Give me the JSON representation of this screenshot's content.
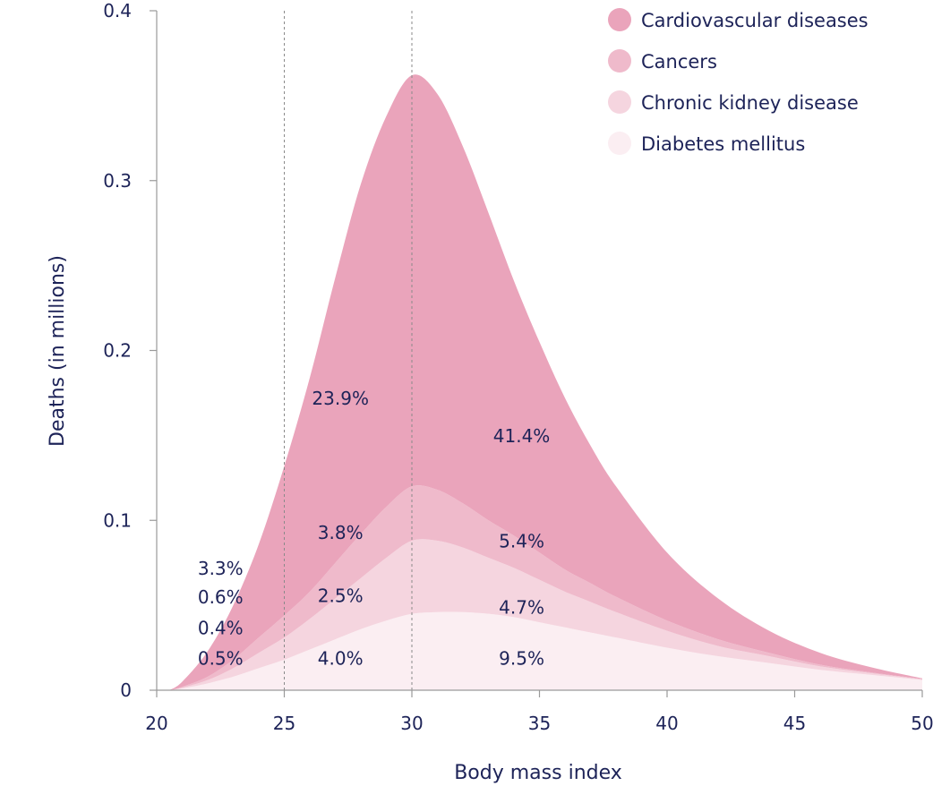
{
  "chart_data": {
    "type": "area",
    "stacked": true,
    "xlabel": "Body mass index",
    "ylabel": "Deaths (in millions)",
    "xlim": [
      20,
      50
    ],
    "ylim": [
      0,
      0.4
    ],
    "xticks": [
      20,
      25,
      30,
      35,
      40,
      45,
      50
    ],
    "yticks": [
      0,
      0.1,
      0.2,
      0.3,
      0.4
    ],
    "ytick_labels": [
      "0",
      "0.1",
      "0.2",
      "0.3",
      "0.4"
    ],
    "reference_lines_x": [
      25,
      30
    ],
    "legend_position": "top-right",
    "x": [
      20.5,
      21,
      22,
      23,
      24,
      25,
      26,
      27,
      28,
      29,
      30,
      31,
      32,
      33,
      34,
      35,
      36,
      37,
      38,
      40,
      42,
      44,
      46,
      48,
      50
    ],
    "series": [
      {
        "name": "Diabetes mellitus",
        "color": "#fbeef2",
        "values": [
          0,
          0.001,
          0.004,
          0.008,
          0.013,
          0.018,
          0.024,
          0.03,
          0.036,
          0.041,
          0.045,
          0.046,
          0.046,
          0.045,
          0.043,
          0.04,
          0.037,
          0.034,
          0.031,
          0.025,
          0.02,
          0.016,
          0.012,
          0.009,
          0.006
        ]
      },
      {
        "name": "Chronic kidney disease",
        "color": "#f5d5df",
        "values": [
          0,
          0.0005,
          0.002,
          0.005,
          0.009,
          0.013,
          0.018,
          0.024,
          0.03,
          0.037,
          0.043,
          0.042,
          0.038,
          0.033,
          0.029,
          0.025,
          0.021,
          0.018,
          0.015,
          0.01,
          0.006,
          0.004,
          0.002,
          0.001,
          0.0004
        ]
      },
      {
        "name": "Cancers",
        "color": "#efbacb",
        "values": [
          0,
          0.0005,
          0.002,
          0.005,
          0.009,
          0.013,
          0.016,
          0.021,
          0.026,
          0.03,
          0.032,
          0.03,
          0.026,
          0.022,
          0.019,
          0.016,
          0.013,
          0.011,
          0.009,
          0.006,
          0.004,
          0.002,
          0.001,
          0.0005,
          0.0002
        ]
      },
      {
        "name": "Cardiovascular diseases",
        "color": "#eaa4bb",
        "values": [
          0,
          0.003,
          0.015,
          0.032,
          0.055,
          0.088,
          0.126,
          0.168,
          0.206,
          0.23,
          0.242,
          0.233,
          0.21,
          0.181,
          0.15,
          0.124,
          0.101,
          0.081,
          0.065,
          0.04,
          0.024,
          0.013,
          0.007,
          0.003,
          0.0004
        ]
      }
    ],
    "annotations": [
      {
        "text": "23.9%",
        "x": 27.2,
        "y": 0.168
      },
      {
        "text": "41.4%",
        "x": 34.3,
        "y": 0.146
      },
      {
        "text": "3.8%",
        "x": 27.2,
        "y": 0.089
      },
      {
        "text": "5.4%",
        "x": 34.3,
        "y": 0.084
      },
      {
        "text": "3.3%",
        "x": 22.5,
        "y": 0.068
      },
      {
        "text": "0.6%",
        "x": 22.5,
        "y": 0.051
      },
      {
        "text": "2.5%",
        "x": 27.2,
        "y": 0.052
      },
      {
        "text": "4.7%",
        "x": 34.3,
        "y": 0.045
      },
      {
        "text": "0.4%",
        "x": 22.5,
        "y": 0.033
      },
      {
        "text": "0.5%",
        "x": 22.5,
        "y": 0.015
      },
      {
        "text": "4.0%",
        "x": 27.2,
        "y": 0.015
      },
      {
        "text": "9.5%",
        "x": 34.3,
        "y": 0.015
      }
    ],
    "legend_order": [
      "Cardiovascular diseases",
      "Cancers",
      "Chronic kidney disease",
      "Diabetes mellitus"
    ]
  },
  "colors": {
    "text": "#1d2358",
    "axis": "#9a9a9a",
    "reference_line": "#8a8a8a"
  }
}
